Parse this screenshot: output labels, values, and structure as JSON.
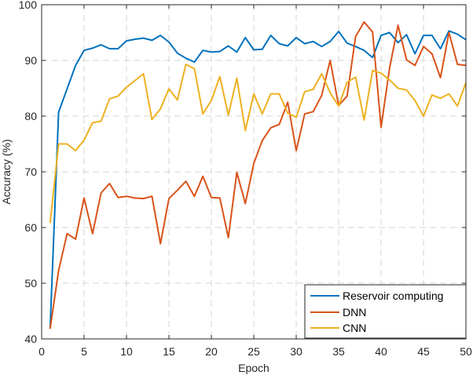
{
  "chart_data": {
    "type": "line",
    "title": "",
    "xlabel": "Epoch",
    "ylabel": "Accuracy (%)",
    "xlim": [
      0,
      50
    ],
    "ylim": [
      40,
      100
    ],
    "xticks": [
      0,
      5,
      10,
      15,
      20,
      25,
      30,
      35,
      40,
      45,
      50
    ],
    "yticks": [
      40,
      50,
      60,
      70,
      80,
      90,
      100
    ],
    "grid": true,
    "legend_position": "lower right",
    "x": [
      1,
      2,
      3,
      4,
      5,
      6,
      7,
      8,
      9,
      10,
      11,
      12,
      13,
      14,
      15,
      16,
      17,
      18,
      19,
      20,
      21,
      22,
      23,
      24,
      25,
      26,
      27,
      28,
      29,
      30,
      31,
      32,
      33,
      34,
      35,
      36,
      37,
      38,
      39,
      40,
      41,
      42,
      43,
      44,
      45,
      46,
      47,
      48,
      49,
      50
    ],
    "series": [
      {
        "name": "Reservoir computing",
        "color": "#0072BD",
        "values": [
          41.9,
          80.7,
          84.9,
          89.1,
          91.8,
          92.2,
          92.8,
          92.1,
          92.1,
          93.5,
          93.8,
          94.0,
          93.6,
          94.5,
          93.3,
          91.3,
          90.4,
          89.7,
          91.8,
          91.5,
          91.6,
          92.6,
          91.5,
          94.1,
          91.9,
          92.0,
          94.5,
          93.0,
          92.6,
          94.1,
          93.0,
          93.4,
          92.5,
          93.4,
          95.2,
          93.1,
          92.5,
          91.8,
          90.5,
          94.5,
          95.0,
          93.2,
          94.6,
          91.2,
          94.5,
          94.5,
          92.1,
          95.3,
          94.7,
          93.7
        ]
      },
      {
        "name": "DNN",
        "color": "#D95319",
        "values": [
          41.8,
          52.3,
          58.9,
          57.9,
          65.3,
          58.9,
          66.2,
          67.9,
          65.4,
          65.6,
          65.3,
          65.2,
          65.6,
          57.1,
          65.2,
          66.7,
          68.3,
          65.6,
          69.2,
          65.4,
          65.3,
          58.2,
          69.9,
          64.3,
          71.5,
          75.6,
          77.9,
          78.5,
          82.5,
          73.8,
          80.4,
          80.8,
          83.7,
          90.0,
          81.9,
          83.6,
          94.3,
          96.9,
          95.1,
          78.0,
          88.6,
          96.3,
          90.1,
          89.1,
          92.5,
          91.2,
          86.9,
          95.0,
          89.3,
          89.1
        ]
      },
      {
        "name": "CNN",
        "color": "#EDB120",
        "values": [
          60.8,
          75.0,
          75.0,
          73.8,
          75.7,
          78.8,
          79.1,
          83.1,
          83.6,
          85.2,
          86.4,
          87.6,
          79.4,
          81.3,
          84.9,
          82.9,
          89.3,
          88.5,
          80.4,
          82.8,
          87.1,
          80.2,
          86.8,
          77.4,
          84.0,
          80.4,
          84.0,
          84.0,
          80.5,
          79.8,
          84.4,
          84.8,
          87.6,
          84.2,
          81.8,
          86.1,
          87.0,
          79.3,
          88.2,
          87.7,
          86.5,
          85.0,
          84.7,
          82.8,
          80.0,
          83.8,
          83.2,
          84.0,
          81.8,
          86.0
        ]
      }
    ]
  }
}
